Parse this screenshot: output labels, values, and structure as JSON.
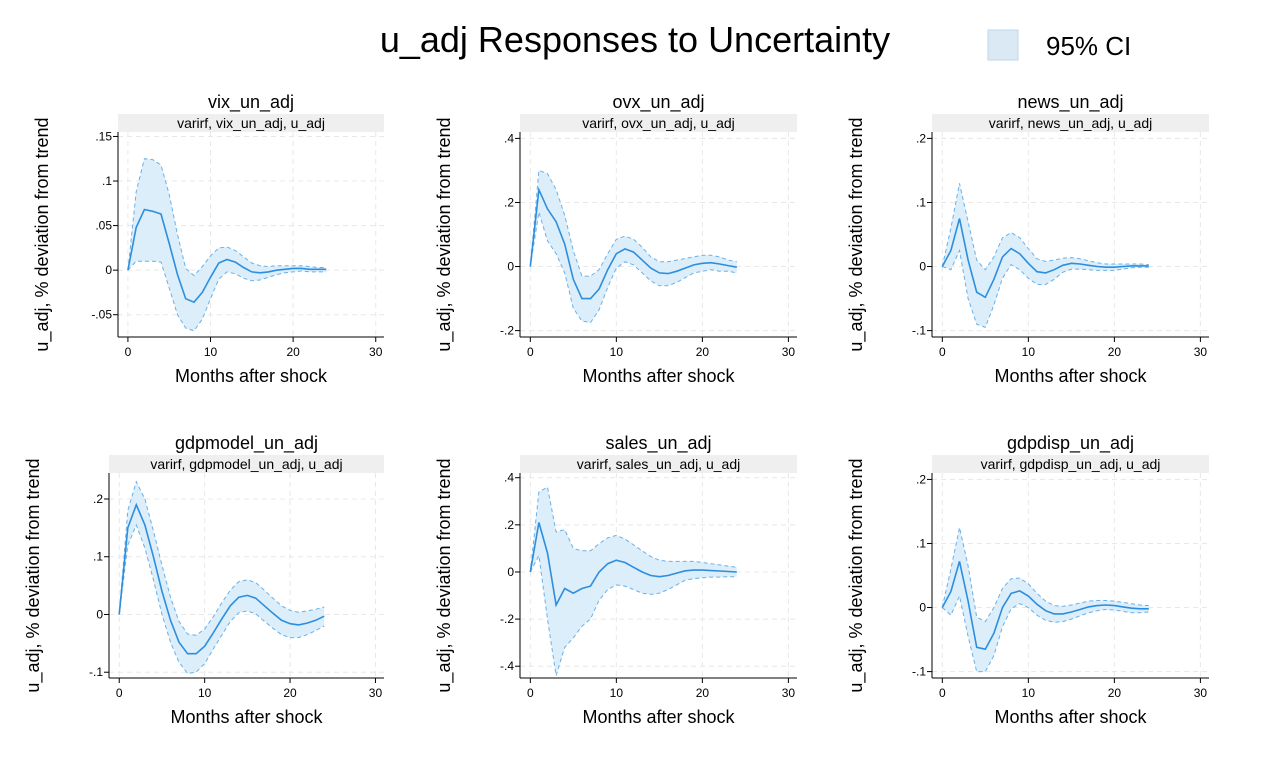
{
  "title": "u_adj Responses to Uncertainty",
  "legend": {
    "label": "95% CI",
    "swatch_color": "#dbe9f5",
    "swatch_border": "#bcd7ec"
  },
  "colors": {
    "line": "#2e8ede",
    "ci_fill": "#dbeef9",
    "ci_border": "#6ab0e8",
    "grid": "#e8e8e8",
    "strip": "#efefef"
  },
  "chart_data": [
    {
      "type": "line",
      "title": "vix_un_adj",
      "subtitle": "varirf, vix_un_adj, u_adj",
      "xlabel": "Months after shock",
      "ylabel": "u_adj, % deviation from trend",
      "xlim": [
        -1.2,
        31
      ],
      "ylim": [
        -0.075,
        0.155
      ],
      "xticks": [
        0,
        10,
        20,
        30
      ],
      "xtick_labels": [
        "0",
        "10",
        "20",
        "30"
      ],
      "yticks": [
        -0.05,
        0,
        0.05,
        0.1,
        0.15
      ],
      "ytick_labels": [
        "-.05",
        "0",
        ".05",
        ".1",
        ".15"
      ],
      "x": [
        0,
        1,
        2,
        3,
        4,
        5,
        6,
        7,
        8,
        9,
        10,
        11,
        12,
        13,
        14,
        15,
        16,
        17,
        18,
        19,
        20,
        21,
        22,
        23,
        24
      ],
      "irf": [
        0,
        0.048,
        0.068,
        0.066,
        0.063,
        0.03,
        -0.005,
        -0.032,
        -0.036,
        -0.025,
        -0.008,
        0.008,
        0.012,
        0.009,
        0.003,
        -0.002,
        -0.003,
        -0.002,
        0,
        0.001,
        0.002,
        0.002,
        0.001,
        0.001,
        0.001
      ],
      "upper": [
        0,
        0.088,
        0.125,
        0.124,
        0.118,
        0.085,
        0.04,
        0.002,
        -0.006,
        0.004,
        0.016,
        0.025,
        0.026,
        0.022,
        0.015,
        0.008,
        0.005,
        0.004,
        0.005,
        0.005,
        0.005,
        0.005,
        0.004,
        0.003,
        0.003
      ],
      "lower": [
        0,
        0.01,
        0.01,
        0.01,
        0.009,
        -0.02,
        -0.05,
        -0.065,
        -0.068,
        -0.055,
        -0.032,
        -0.01,
        -0.002,
        -0.004,
        -0.009,
        -0.012,
        -0.011,
        -0.008,
        -0.005,
        -0.003,
        -0.002,
        -0.001,
        -0.002,
        -0.002,
        -0.002
      ]
    },
    {
      "type": "line",
      "title": "ovx_un_adj",
      "subtitle": "varirf, ovx_un_adj, u_adj",
      "xlabel": "Months after shock",
      "ylabel": "u_adj, % deviation from trend",
      "xlim": [
        -1.2,
        31
      ],
      "ylim": [
        -0.22,
        0.42
      ],
      "xticks": [
        0,
        10,
        20,
        30
      ],
      "xtick_labels": [
        "0",
        "10",
        "20",
        "30"
      ],
      "yticks": [
        -0.2,
        0,
        0.2,
        0.4
      ],
      "ytick_labels": [
        "-.2",
        "0",
        ".2",
        ".4"
      ],
      "x": [
        0,
        1,
        2,
        3,
        4,
        5,
        6,
        7,
        8,
        9,
        10,
        11,
        12,
        13,
        14,
        15,
        16,
        17,
        18,
        19,
        20,
        21,
        22,
        23,
        24
      ],
      "irf": [
        0,
        0.24,
        0.18,
        0.14,
        0.07,
        -0.04,
        -0.1,
        -0.1,
        -0.07,
        -0.01,
        0.04,
        0.055,
        0.045,
        0.02,
        -0.005,
        -0.02,
        -0.022,
        -0.015,
        -0.005,
        0.005,
        0.01,
        0.012,
        0.008,
        0.003,
        -0.002
      ],
      "upper": [
        0,
        0.3,
        0.29,
        0.24,
        0.16,
        0.05,
        -0.03,
        -0.03,
        -0.01,
        0.04,
        0.085,
        0.095,
        0.085,
        0.06,
        0.03,
        0.015,
        0.015,
        0.02,
        0.025,
        0.03,
        0.035,
        0.035,
        0.03,
        0.02,
        0.015
      ],
      "lower": [
        0,
        0.17,
        0.08,
        0.04,
        -0.02,
        -0.13,
        -0.17,
        -0.175,
        -0.135,
        -0.065,
        -0.005,
        0.015,
        0.005,
        -0.02,
        -0.045,
        -0.06,
        -0.06,
        -0.05,
        -0.035,
        -0.02,
        -0.015,
        -0.01,
        -0.015,
        -0.015,
        -0.02
      ]
    },
    {
      "type": "line",
      "title": "news_un_adj",
      "subtitle": "varirf, news_un_adj, u_adj",
      "xlabel": "Months after shock",
      "ylabel": "u_adj, % deviation from trend",
      "xlim": [
        -1.2,
        31
      ],
      "ylim": [
        -0.11,
        0.21
      ],
      "xticks": [
        0,
        10,
        20,
        30
      ],
      "xtick_labels": [
        "0",
        "10",
        "20",
        "30"
      ],
      "yticks": [
        -0.1,
        0,
        0.1,
        0.2
      ],
      "ytick_labels": [
        "-.1",
        "0",
        ".1",
        ".2"
      ],
      "x": [
        0,
        1,
        2,
        3,
        4,
        5,
        6,
        7,
        8,
        9,
        10,
        11,
        12,
        13,
        14,
        15,
        16,
        17,
        18,
        19,
        20,
        21,
        22,
        23,
        24
      ],
      "irf": [
        0,
        0.025,
        0.075,
        0.01,
        -0.04,
        -0.048,
        -0.02,
        0.015,
        0.028,
        0.02,
        0.005,
        -0.008,
        -0.01,
        -0.005,
        0.002,
        0.005,
        0.004,
        0.002,
        0,
        -0.001,
        -0.001,
        0,
        0.001,
        0.001,
        0.001
      ],
      "upper": [
        0,
        0.06,
        0.13,
        0.07,
        0.01,
        -0.005,
        0.015,
        0.045,
        0.053,
        0.045,
        0.028,
        0.012,
        0.008,
        0.01,
        0.013,
        0.014,
        0.012,
        0.009,
        0.006,
        0.004,
        0.004,
        0.004,
        0.004,
        0.004,
        0.003
      ],
      "lower": [
        0,
        -0.005,
        0.025,
        -0.05,
        -0.09,
        -0.095,
        -0.06,
        -0.018,
        0.003,
        -0.005,
        -0.018,
        -0.028,
        -0.028,
        -0.02,
        -0.009,
        -0.004,
        -0.004,
        -0.005,
        -0.006,
        -0.006,
        -0.006,
        -0.004,
        -0.002,
        -0.001,
        -0.001
      ]
    },
    {
      "type": "line",
      "title": "gdpmodel_un_adj",
      "subtitle": "varirf, gdpmodel_un_adj, u_adj",
      "xlabel": "Months after shock",
      "ylabel": "u_adj, % deviation from trend",
      "xlim": [
        -1.2,
        31
      ],
      "ylim": [
        -0.11,
        0.245
      ],
      "xticks": [
        0,
        10,
        20,
        30
      ],
      "xtick_labels": [
        "0",
        "10",
        "20",
        "30"
      ],
      "yticks": [
        -0.1,
        0,
        0.1,
        0.2
      ],
      "ytick_labels": [
        "-.1",
        "0",
        ".1",
        ".2"
      ],
      "x": [
        0,
        1,
        2,
        3,
        4,
        5,
        6,
        7,
        8,
        9,
        10,
        11,
        12,
        13,
        14,
        15,
        16,
        17,
        18,
        19,
        20,
        21,
        22,
        23,
        24
      ],
      "irf": [
        0,
        0.15,
        0.19,
        0.155,
        0.1,
        0.04,
        -0.01,
        -0.048,
        -0.068,
        -0.068,
        -0.055,
        -0.032,
        -0.008,
        0.015,
        0.03,
        0.033,
        0.028,
        0.015,
        0.002,
        -0.01,
        -0.016,
        -0.018,
        -0.015,
        -0.01,
        -0.003
      ],
      "upper": [
        0,
        0.18,
        0.23,
        0.2,
        0.145,
        0.085,
        0.03,
        -0.012,
        -0.034,
        -0.036,
        -0.025,
        -0.004,
        0.02,
        0.042,
        0.057,
        0.06,
        0.055,
        0.042,
        0.028,
        0.015,
        0.007,
        0.004,
        0.006,
        0.009,
        0.013
      ],
      "lower": [
        0,
        0.12,
        0.155,
        0.115,
        0.06,
        0.0,
        -0.048,
        -0.083,
        -0.102,
        -0.1,
        -0.085,
        -0.06,
        -0.036,
        -0.012,
        0.003,
        0.006,
        0.001,
        -0.012,
        -0.024,
        -0.035,
        -0.04,
        -0.04,
        -0.035,
        -0.028,
        -0.02
      ]
    },
    {
      "type": "line",
      "title": "sales_un_adj",
      "subtitle": "varirf, sales_un_adj, u_adj",
      "xlabel": "Months after shock",
      "ylabel": "u_adj, % deviation from trend",
      "xlim": [
        -1.2,
        31
      ],
      "ylim": [
        -0.45,
        0.42
      ],
      "xticks": [
        0,
        10,
        20,
        30
      ],
      "xtick_labels": [
        "0",
        "10",
        "20",
        "30"
      ],
      "yticks": [
        -0.4,
        -0.2,
        0,
        0.2,
        0.4
      ],
      "ytick_labels": [
        "-.4",
        "-.2",
        "0",
        ".2",
        ".4"
      ],
      "x": [
        0,
        1,
        2,
        3,
        4,
        5,
        6,
        7,
        8,
        9,
        10,
        11,
        12,
        13,
        14,
        15,
        16,
        17,
        18,
        19,
        20,
        21,
        22,
        23,
        24
      ],
      "irf": [
        0,
        0.21,
        0.08,
        -0.14,
        -0.07,
        -0.09,
        -0.07,
        -0.06,
        0.0,
        0.035,
        0.05,
        0.04,
        0.02,
        0.0,
        -0.015,
        -0.02,
        -0.015,
        -0.005,
        0.005,
        0.008,
        0.008,
        0.006,
        0.004,
        0.002,
        0.0
      ],
      "upper": [
        0,
        0.34,
        0.36,
        0.17,
        0.18,
        0.1,
        0.09,
        0.09,
        0.12,
        0.145,
        0.155,
        0.14,
        0.115,
        0.09,
        0.065,
        0.05,
        0.045,
        0.045,
        0.045,
        0.045,
        0.04,
        0.035,
        0.03,
        0.025,
        0.02
      ],
      "lower": [
        0,
        0.07,
        -0.2,
        -0.44,
        -0.32,
        -0.28,
        -0.23,
        -0.2,
        -0.12,
        -0.075,
        -0.055,
        -0.06,
        -0.075,
        -0.09,
        -0.095,
        -0.09,
        -0.075,
        -0.055,
        -0.035,
        -0.028,
        -0.025,
        -0.022,
        -0.022,
        -0.02,
        -0.02
      ]
    },
    {
      "type": "line",
      "title": "gdpdisp_un_adj",
      "subtitle": "varirf, gdpdisp_un_adj, u_adj",
      "xlabel": "Months after shock",
      "ylabel": "u_adj, % deviation from trend",
      "xlim": [
        -1.2,
        31
      ],
      "ylim": [
        -0.11,
        0.21
      ],
      "xticks": [
        0,
        10,
        20,
        30
      ],
      "xtick_labels": [
        "0",
        "10",
        "20",
        "30"
      ],
      "yticks": [
        -0.1,
        0,
        0.1,
        0.2
      ],
      "ytick_labels": [
        "-.1",
        "0",
        ".1",
        ".2"
      ],
      "x": [
        0,
        1,
        2,
        3,
        4,
        5,
        6,
        7,
        8,
        9,
        10,
        11,
        12,
        13,
        14,
        15,
        16,
        17,
        18,
        19,
        20,
        21,
        22,
        23,
        24
      ],
      "irf": [
        0,
        0.025,
        0.072,
        0.01,
        -0.062,
        -0.065,
        -0.04,
        0.0,
        0.022,
        0.026,
        0.018,
        0.005,
        -0.005,
        -0.01,
        -0.01,
        -0.007,
        -0.003,
        0.001,
        0.003,
        0.004,
        0.003,
        0.001,
        -0.001,
        -0.002,
        -0.002
      ],
      "upper": [
        0,
        0.06,
        0.125,
        0.065,
        -0.015,
        -0.022,
        0.0,
        0.03,
        0.045,
        0.046,
        0.037,
        0.022,
        0.01,
        0.003,
        0.002,
        0.004,
        0.007,
        0.01,
        0.011,
        0.011,
        0.01,
        0.008,
        0.006,
        0.004,
        0.003
      ],
      "lower": [
        0,
        -0.012,
        0.018,
        -0.045,
        -0.1,
        -0.1,
        -0.075,
        -0.03,
        -0.002,
        0.006,
        0.0,
        -0.012,
        -0.02,
        -0.023,
        -0.022,
        -0.018,
        -0.013,
        -0.008,
        -0.005,
        -0.003,
        -0.004,
        -0.006,
        -0.008,
        -0.008,
        -0.007
      ]
    }
  ]
}
